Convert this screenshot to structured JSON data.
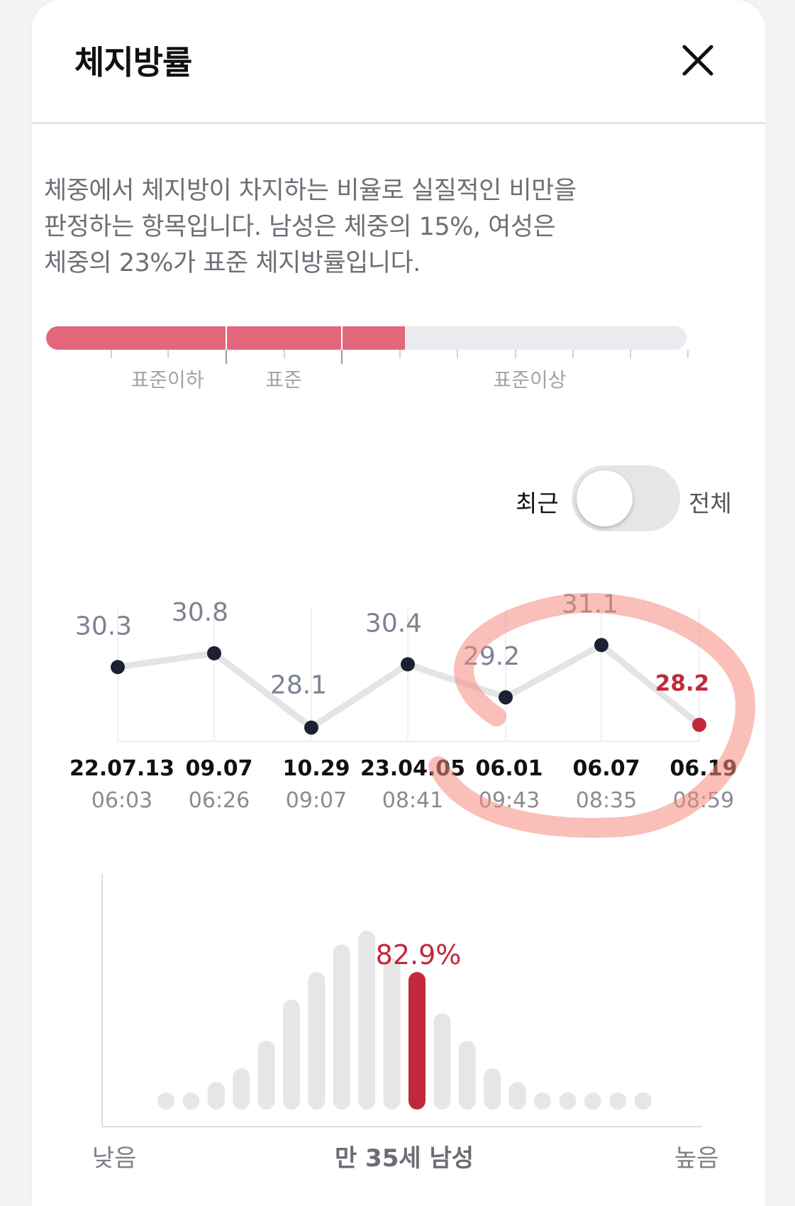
{
  "header": {
    "title": "체지방률"
  },
  "description": {
    "lines": [
      "체중에서 체지방이 차지하는 비율로 실질적인 비만을",
      "판정하는 항목입니다. 남성은 체중의 15%, 여성은",
      "체중의 23%가 표준 체지방률입니다."
    ]
  },
  "gauge": {
    "fill_fraction": 0.56,
    "labels": [
      "표준이하",
      "표준",
      "표준이상"
    ],
    "colors": {
      "fill": "#e2677a",
      "track": "#eaebee"
    }
  },
  "toggle": {
    "left_label": "최근",
    "right_label": "전체",
    "state": "최근"
  },
  "chart_data": [
    {
      "type": "line",
      "x": [
        "22.07.13 06:03",
        "09.07 06:26",
        "10.29 09:07",
        "23.04.05 08:41",
        "06.01 09:43",
        "06.07 08:35",
        "06.19 08:59"
      ],
      "dates": [
        "22.07.13",
        "09.07",
        "10.29",
        "23.04.05",
        "06.01",
        "06.07",
        "06.19"
      ],
      "times": [
        "06:03",
        "06:26",
        "09:07",
        "08:41",
        "09:43",
        "08:35",
        "08:59"
      ],
      "values": [
        30.3,
        30.8,
        28.1,
        30.4,
        29.2,
        31.1,
        28.2
      ],
      "ylim": [
        27.6,
        32.5
      ],
      "highlight_index": 6,
      "colors": {
        "point": "#1d2033",
        "line": "#e4e4e7",
        "highlight": "#c2283c",
        "label": "#7c8294"
      }
    },
    {
      "type": "bar",
      "values": [
        1,
        1,
        2,
        3,
        5,
        8,
        10,
        12,
        13,
        11,
        10,
        7,
        5,
        3,
        2,
        1,
        1,
        1,
        1,
        1
      ],
      "highlight_index": 10,
      "highlight_label": "82.9%",
      "x_left_label": "낮음",
      "x_right_label": "높음",
      "group_label": "만 35세 남성",
      "colors": {
        "bar": "#e6e6e8",
        "highlight": "#c2283c"
      }
    }
  ]
}
